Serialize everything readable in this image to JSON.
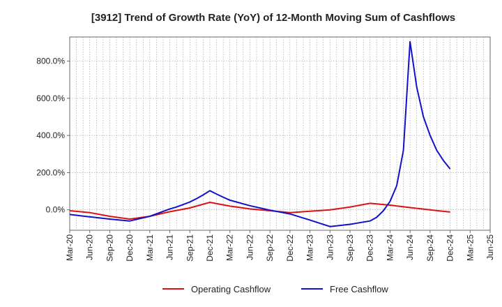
{
  "chart_data": {
    "type": "line",
    "title": "[3912]  Trend of Growth Rate (YoY) of 12-Month Moving Sum of Cashflows",
    "xlabel": "",
    "ylabel": "",
    "x_tick_labels": [
      "Mar-20",
      "Jun-20",
      "Sep-20",
      "Dec-20",
      "Mar-21",
      "Jun-21",
      "Sep-21",
      "Dec-21",
      "Mar-22",
      "Jun-22",
      "Sep-22",
      "Dec-22",
      "Mar-23",
      "Jun-23",
      "Sep-23",
      "Dec-23",
      "Mar-24",
      "Jun-24",
      "Sep-24",
      "Dec-24",
      "Mar-25",
      "Jun-25"
    ],
    "y_ticks": [
      0,
      200,
      400,
      600,
      800
    ],
    "y_tick_labels": [
      "0.0%",
      "200.0%",
      "400.0%",
      "600.0%",
      "800.0%"
    ],
    "ylim": [
      -110,
      930
    ],
    "grid": true,
    "legend_position": "bottom",
    "series": [
      {
        "name": "Operating Cashflow",
        "color": "#dd1111",
        "x": [
          "Mar-20",
          "Jun-20",
          "Sep-20",
          "Dec-20",
          "Mar-21",
          "Jun-21",
          "Sep-21",
          "Dec-21",
          "Mar-22",
          "Jun-22",
          "Sep-22",
          "Dec-22",
          "Mar-23",
          "Jun-23",
          "Sep-23",
          "Dec-23",
          "Mar-24",
          "Jun-24",
          "Sep-24",
          "Dec-24"
        ],
        "values": [
          -5,
          -15,
          -35,
          -50,
          -35,
          -10,
          10,
          40,
          20,
          5,
          -5,
          -15,
          -8,
          0,
          15,
          35,
          25,
          12,
          0,
          -12
        ]
      },
      {
        "name": "Free Cashflow",
        "color": "#1111cc",
        "x": [
          "Mar-20",
          "Jun-20",
          "Sep-20",
          "Dec-20",
          "Mar-21",
          "Jun-21",
          "Jul-21",
          "Aug-21",
          "Sep-21",
          "Oct-21",
          "Nov-21",
          "Dec-21",
          "Jan-22",
          "Feb-22",
          "Mar-22",
          "Jun-22",
          "Sep-22",
          "Dec-22",
          "Mar-23",
          "Jun-23",
          "Sep-23",
          "Dec-23",
          "Jan-24",
          "Feb-24",
          "Mar-24",
          "Apr-24",
          "May-24",
          "Jun-24",
          "Jul-24",
          "Aug-24",
          "Sep-24",
          "Oct-24",
          "Nov-24",
          "Dec-24"
        ],
        "values": [
          -25,
          -38,
          -50,
          -60,
          -35,
          5,
          15,
          28,
          42,
          60,
          80,
          103,
          85,
          68,
          52,
          22,
          -2,
          -22,
          -55,
          -90,
          -78,
          -60,
          -40,
          -5,
          45,
          130,
          320,
          905,
          660,
          500,
          400,
          320,
          265,
          220
        ]
      }
    ]
  }
}
